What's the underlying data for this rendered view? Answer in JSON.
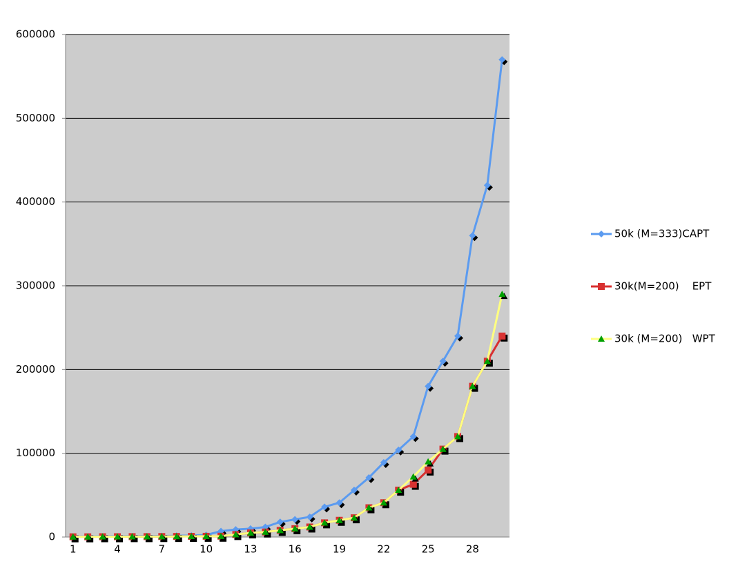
{
  "chart_data": {
    "type": "line",
    "categories": [
      "1",
      null,
      null,
      "4",
      null,
      null,
      "7",
      null,
      null,
      "10",
      null,
      null,
      "13",
      null,
      null,
      "16",
      null,
      null,
      "19",
      null,
      null,
      "22",
      null,
      null,
      "25",
      null,
      null,
      "28",
      null,
      null
    ],
    "series": [
      {
        "name": "50k (M=333)CAPT",
        "color": "#5b9bf0",
        "marker": "diamond",
        "marker_color": "#5b9bf0",
        "values": [
          500,
          600,
          700,
          800,
          900,
          1000,
          1200,
          1500,
          1800,
          2500,
          7000,
          9000,
          10000,
          12000,
          18000,
          21000,
          24000,
          36000,
          41000,
          56000,
          71000,
          89000,
          104000,
          120000,
          180000,
          210000,
          240000,
          360000,
          420000,
          570000
        ]
      },
      {
        "name": "30k(M=200)    EPT",
        "color": "#d83030",
        "marker": "square",
        "marker_color": "#d83030",
        "values": [
          300,
          300,
          400,
          400,
          500,
          500,
          600,
          700,
          800,
          900,
          1000,
          3000,
          5000,
          6000,
          8000,
          10000,
          12000,
          17000,
          20000,
          23000,
          35000,
          41000,
          56000,
          63000,
          80000,
          105000,
          120000,
          180000,
          210000,
          240000
        ]
      },
      {
        "name": "30k (M=200)   WPT",
        "color": "#ffff80",
        "marker": "triangle",
        "marker_color": "#00a000",
        "values": [
          300,
          300,
          400,
          400,
          500,
          500,
          600,
          700,
          800,
          900,
          1000,
          3000,
          5000,
          6000,
          8000,
          10000,
          12000,
          17000,
          20000,
          23000,
          35000,
          41000,
          56000,
          72000,
          90000,
          105000,
          120000,
          180000,
          210000,
          290000
        ]
      }
    ],
    "ylim": [
      0,
      600000
    ],
    "yticks": [
      0,
      100000,
      200000,
      300000,
      400000,
      500000,
      600000
    ],
    "grid": true,
    "plot_background": "#cccccc",
    "legend": "right"
  }
}
